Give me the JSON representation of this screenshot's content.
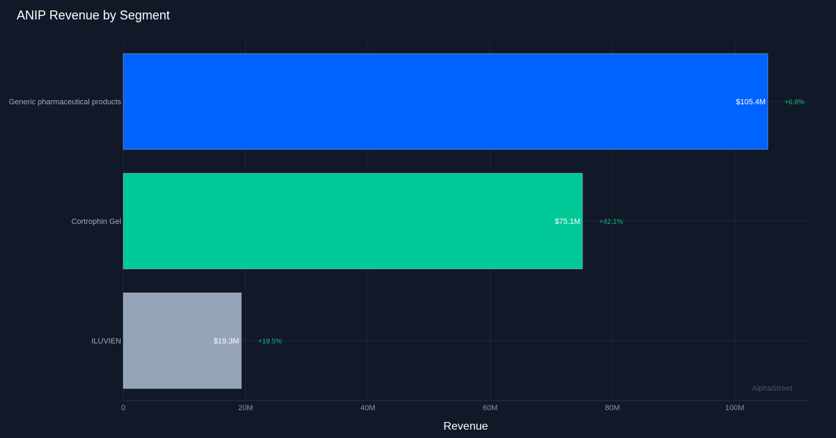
{
  "chart_data": {
    "type": "bar",
    "orientation": "horizontal",
    "title": "ANIP Revenue by Segment",
    "xlabel": "Revenue",
    "ylabel": "",
    "xlim": [
      0,
      112000000
    ],
    "x_ticks": [
      {
        "value": 0,
        "label": "0"
      },
      {
        "value": 20000000,
        "label": "20M"
      },
      {
        "value": 40000000,
        "label": "40M"
      },
      {
        "value": 60000000,
        "label": "60M"
      },
      {
        "value": 80000000,
        "label": "80M"
      },
      {
        "value": 100000000,
        "label": "100M"
      }
    ],
    "grid": true,
    "categories": [
      "Generic pharmaceutical products",
      "Cortrophin Gel",
      "ILUVIEN"
    ],
    "values": [
      105400000,
      75100000,
      19300000
    ],
    "value_labels": [
      "$105.4M",
      "$75.1M",
      "$19.3M"
    ],
    "growth_labels": [
      "+6.8%",
      "+42.1%",
      "+19.5%"
    ],
    "bar_colors": [
      "#0062ff",
      "#00c896",
      "#94a3b8"
    ],
    "growth_color": "#10b981",
    "watermark": "AlphaStreet"
  }
}
